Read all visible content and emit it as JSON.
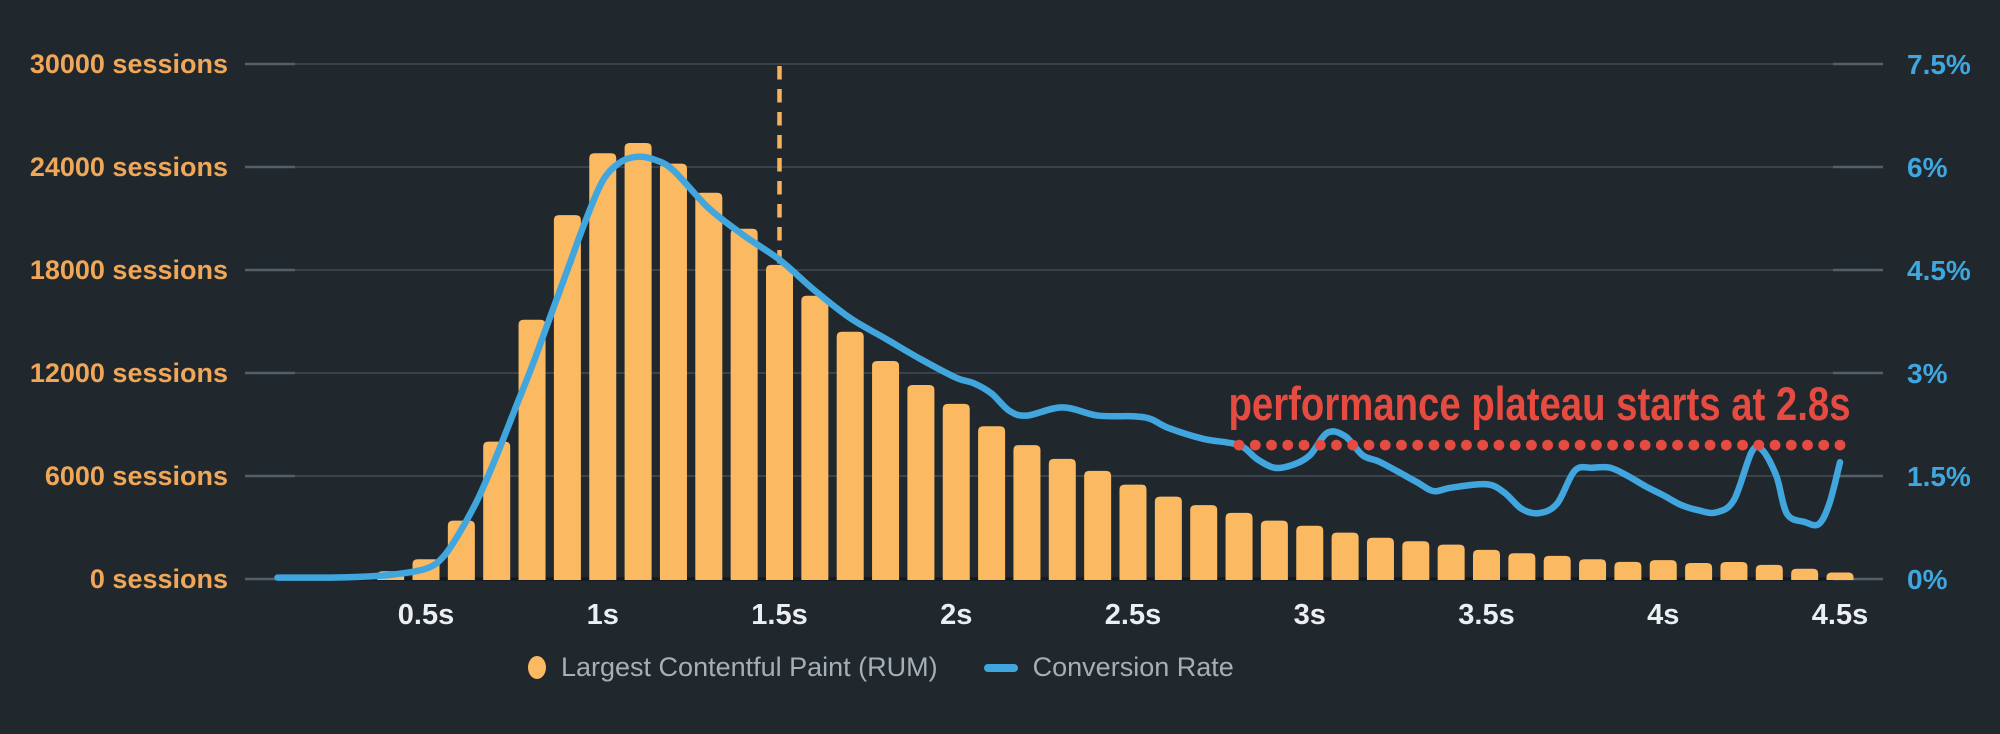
{
  "annotation": {
    "text": "performance plateau starts at 2.8s",
    "color": "#e54b40"
  },
  "legend": [
    {
      "label": "Largest Contentful Paint (RUM)",
      "marker": "dot",
      "color": "#fbba62"
    },
    {
      "label": "Conversion Rate",
      "marker": "dash",
      "color": "#41a6de"
    }
  ],
  "colors": {
    "background": "#20282e",
    "bar": "#fbba62",
    "line": "#41a6de",
    "red": "#e54b40",
    "axis_left_text": "#f0a758",
    "axis_right_text": "#3ea7e0",
    "x_tick_text": "#eceff1",
    "gridline": "#39424a",
    "tick_stub": "#545f68",
    "baseline": "#14191e",
    "median_dash": "#f5b15c",
    "legend_text": "#a6afb6"
  },
  "chart_data": {
    "type": "combo bar + line (histogram with overlay)",
    "x_axis": {
      "tick_labels": [
        "0.5s",
        "1s",
        "1.5s",
        "2s",
        "2.5s",
        "3s",
        "3.5s",
        "4s",
        "4.5s"
      ],
      "tick_values": [
        0.5,
        1,
        1.5,
        2,
        2.5,
        3,
        3.5,
        4,
        4.5
      ],
      "unit": "seconds"
    },
    "y_axis_left": {
      "labels": [
        "30000 sessions",
        "24000 sessions",
        "18000 sessions",
        "12000 sessions",
        "6000 sessions",
        "0 sessions"
      ],
      "values": [
        30000,
        24000,
        18000,
        12000,
        6000,
        0
      ],
      "max": 30000,
      "series": "Largest Contentful Paint (RUM)"
    },
    "y_axis_right": {
      "labels": [
        "7.5%",
        "6%",
        "4.5%",
        "3%",
        "1.5%",
        "0%"
      ],
      "values": [
        7.5,
        6,
        4.5,
        3,
        1.5,
        0
      ],
      "max": 7.5,
      "series": "Conversion Rate"
    },
    "bars": {
      "name": "Largest Contentful Paint (RUM)",
      "t": [
        0.4,
        0.5,
        0.6,
        0.7,
        0.8,
        0.9,
        1.0,
        1.1,
        1.2,
        1.3,
        1.4,
        1.5,
        1.6,
        1.7,
        1.8,
        1.9,
        2.0,
        2.1,
        2.2,
        2.3,
        2.4,
        2.5,
        2.6,
        2.7,
        2.8,
        2.9,
        3.0,
        3.1,
        3.2,
        3.3,
        3.4,
        3.5,
        3.6,
        3.7,
        3.8,
        3.9,
        4.0,
        4.1,
        4.2,
        4.3,
        4.4,
        4.5
      ],
      "sessions": [
        450,
        1150,
        3400,
        8000,
        15100,
        21200,
        24800,
        25400,
        24200,
        22500,
        20400,
        18300,
        16500,
        14400,
        12700,
        11300,
        10200,
        8900,
        7800,
        7000,
        6300,
        5500,
        4800,
        4300,
        3850,
        3400,
        3100,
        2700,
        2400,
        2200,
        2000,
        1700,
        1500,
        1350,
        1150,
        1000,
        1100,
        930,
        990,
        820,
        600,
        380
      ]
    },
    "line": {
      "name": "Conversion Rate",
      "points_t_pct": [
        [
          0.08,
          0.02
        ],
        [
          0.2,
          0.02
        ],
        [
          0.3,
          0.03
        ],
        [
          0.4,
          0.06
        ],
        [
          0.5,
          0.15
        ],
        [
          0.55,
          0.33
        ],
        [
          0.6,
          0.72
        ],
        [
          0.65,
          1.2
        ],
        [
          0.7,
          1.8
        ],
        [
          0.75,
          2.45
        ],
        [
          0.8,
          3.1
        ],
        [
          0.85,
          3.8
        ],
        [
          0.9,
          4.5
        ],
        [
          0.95,
          5.2
        ],
        [
          1.0,
          5.8
        ],
        [
          1.05,
          6.07
        ],
        [
          1.1,
          6.15
        ],
        [
          1.15,
          6.1
        ],
        [
          1.2,
          5.95
        ],
        [
          1.3,
          5.4
        ],
        [
          1.4,
          5.0
        ],
        [
          1.5,
          4.65
        ],
        [
          1.6,
          4.2
        ],
        [
          1.7,
          3.8
        ],
        [
          1.8,
          3.5
        ],
        [
          1.9,
          3.2
        ],
        [
          2.0,
          2.93
        ],
        [
          2.05,
          2.85
        ],
        [
          2.1,
          2.7
        ],
        [
          2.15,
          2.45
        ],
        [
          2.2,
          2.38
        ],
        [
          2.3,
          2.5
        ],
        [
          2.4,
          2.38
        ],
        [
          2.5,
          2.37
        ],
        [
          2.55,
          2.33
        ],
        [
          2.6,
          2.2
        ],
        [
          2.7,
          2.04
        ],
        [
          2.8,
          1.95
        ],
        [
          2.85,
          1.75
        ],
        [
          2.9,
          1.62
        ],
        [
          2.95,
          1.66
        ],
        [
          3.0,
          1.8
        ],
        [
          3.05,
          2.13
        ],
        [
          3.1,
          2.08
        ],
        [
          3.15,
          1.8
        ],
        [
          3.2,
          1.7
        ],
        [
          3.3,
          1.42
        ],
        [
          3.35,
          1.28
        ],
        [
          3.4,
          1.33
        ],
        [
          3.5,
          1.38
        ],
        [
          3.55,
          1.26
        ],
        [
          3.6,
          1.02
        ],
        [
          3.65,
          0.96
        ],
        [
          3.7,
          1.1
        ],
        [
          3.75,
          1.58
        ],
        [
          3.8,
          1.62
        ],
        [
          3.85,
          1.62
        ],
        [
          3.9,
          1.5
        ],
        [
          3.95,
          1.35
        ],
        [
          4.0,
          1.22
        ],
        [
          4.05,
          1.08
        ],
        [
          4.1,
          1.0
        ],
        [
          4.15,
          0.97
        ],
        [
          4.2,
          1.15
        ],
        [
          4.25,
          1.85
        ],
        [
          4.28,
          1.88
        ],
        [
          4.32,
          1.5
        ],
        [
          4.35,
          0.95
        ],
        [
          4.4,
          0.83
        ],
        [
          4.44,
          0.8
        ],
        [
          4.47,
          1.1
        ],
        [
          4.5,
          1.7
        ]
      ]
    },
    "plateau_marker": {
      "label": "performance plateau starts at 2.8s",
      "t_start": 2.8,
      "t_end": 4.5,
      "pct": 1.95,
      "style": "red dotted horizontal line"
    },
    "median_marker": {
      "t": 1.5,
      "style": "orange dashed vertical line",
      "top_value_sessions": 30000,
      "bottom_value_sessions": 18300
    },
    "layout_hints": {
      "grid": "horizontal gridlines only",
      "legend_position": "bottom-left-of-center",
      "bar_width_seconds": 0.1
    }
  }
}
